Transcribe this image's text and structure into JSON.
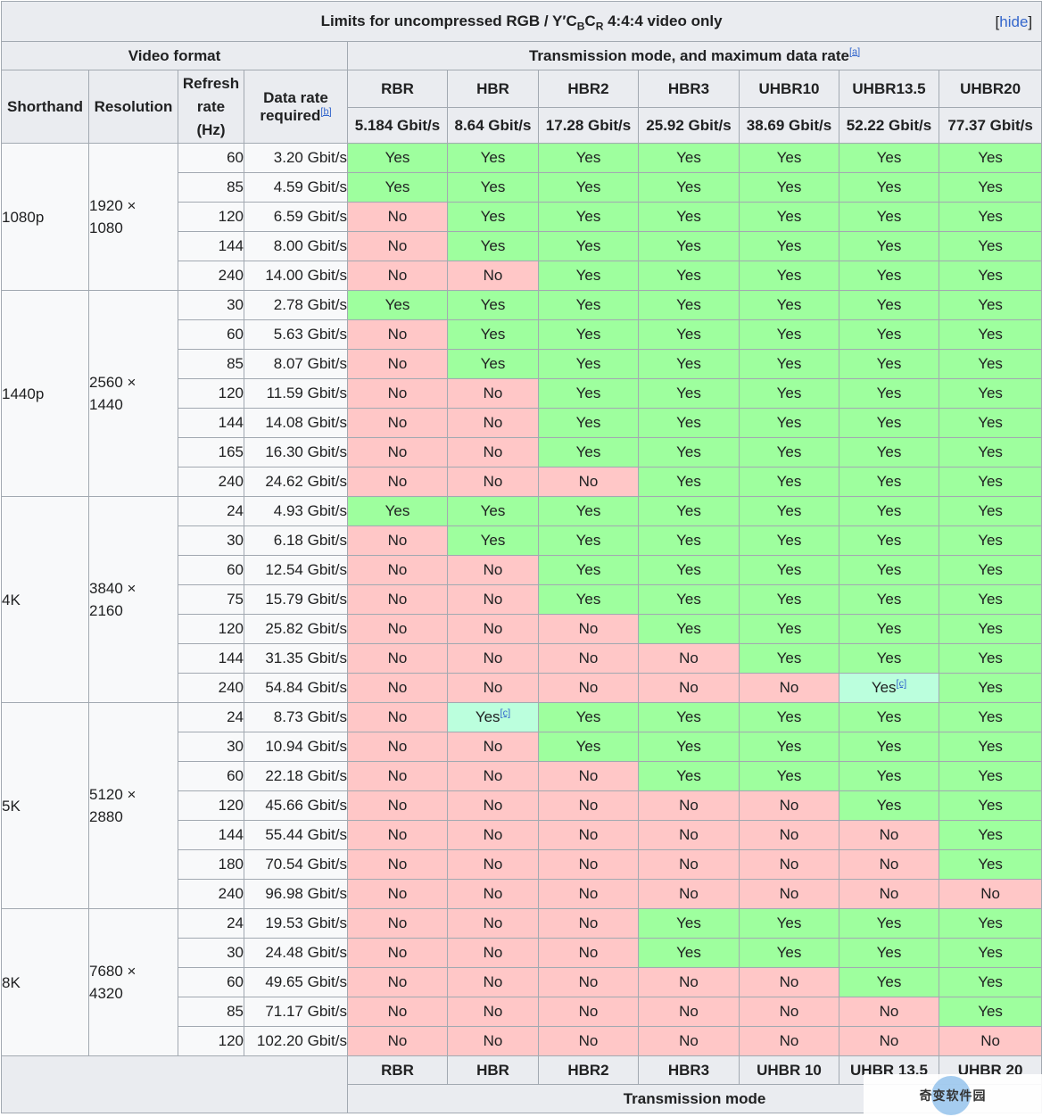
{
  "caption": {
    "prefix": "Limits for uncompressed RGB / Y′C",
    "sub1": "B",
    "mid": "C",
    "sub2": "R",
    "suffix": " 4:4:4 video only",
    "hide_bracket_open": "[",
    "hide_label": "hide",
    "hide_bracket_close": "]"
  },
  "header": {
    "video_format": "Video format",
    "transmission": "Transmission mode, and maximum data rate",
    "transmission_note": "[a]",
    "shorthand": "Shorthand",
    "resolution": "Resolution",
    "refresh_line1": "Refresh",
    "refresh_line2": "rate",
    "refresh_line3": "(Hz)",
    "datarate_line1": "Data rate",
    "datarate_line2": "required",
    "datarate_note": "[b]",
    "modes": [
      "RBR",
      "HBR",
      "HBR2",
      "HBR3",
      "UHBR10",
      "UHBR13.5",
      "UHBR20"
    ],
    "mode_rates": [
      "5.184 Gbit/s",
      "8.64 Gbit/s",
      "17.28 Gbit/s",
      "25.92 Gbit/s",
      "38.69 Gbit/s",
      "52.22 Gbit/s",
      "77.37 Gbit/s"
    ]
  },
  "groups": [
    {
      "shorthand": "1080p",
      "res_line1": "1920 ×",
      "res_line2": "1080",
      "rows": [
        {
          "hz": "60",
          "rate": "3.20 Gbit/s",
          "cells": [
            "Yes",
            "Yes",
            "Yes",
            "Yes",
            "Yes",
            "Yes",
            "Yes"
          ]
        },
        {
          "hz": "85",
          "rate": "4.59 Gbit/s",
          "cells": [
            "Yes",
            "Yes",
            "Yes",
            "Yes",
            "Yes",
            "Yes",
            "Yes"
          ]
        },
        {
          "hz": "120",
          "rate": "6.59 Gbit/s",
          "cells": [
            "No",
            "Yes",
            "Yes",
            "Yes",
            "Yes",
            "Yes",
            "Yes"
          ]
        },
        {
          "hz": "144",
          "rate": "8.00 Gbit/s",
          "cells": [
            "No",
            "Yes",
            "Yes",
            "Yes",
            "Yes",
            "Yes",
            "Yes"
          ]
        },
        {
          "hz": "240",
          "rate": "14.00 Gbit/s",
          "cells": [
            "No",
            "No",
            "Yes",
            "Yes",
            "Yes",
            "Yes",
            "Yes"
          ]
        }
      ]
    },
    {
      "shorthand": "1440p",
      "res_line1": "2560 ×",
      "res_line2": "1440",
      "rows": [
        {
          "hz": "30",
          "rate": "2.78 Gbit/s",
          "cells": [
            "Yes",
            "Yes",
            "Yes",
            "Yes",
            "Yes",
            "Yes",
            "Yes"
          ]
        },
        {
          "hz": "60",
          "rate": "5.63 Gbit/s",
          "cells": [
            "No",
            "Yes",
            "Yes",
            "Yes",
            "Yes",
            "Yes",
            "Yes"
          ]
        },
        {
          "hz": "85",
          "rate": "8.07 Gbit/s",
          "cells": [
            "No",
            "Yes",
            "Yes",
            "Yes",
            "Yes",
            "Yes",
            "Yes"
          ]
        },
        {
          "hz": "120",
          "rate": "11.59 Gbit/s",
          "cells": [
            "No",
            "No",
            "Yes",
            "Yes",
            "Yes",
            "Yes",
            "Yes"
          ]
        },
        {
          "hz": "144",
          "rate": "14.08 Gbit/s",
          "cells": [
            "No",
            "No",
            "Yes",
            "Yes",
            "Yes",
            "Yes",
            "Yes"
          ]
        },
        {
          "hz": "165",
          "rate": "16.30 Gbit/s",
          "cells": [
            "No",
            "No",
            "Yes",
            "Yes",
            "Yes",
            "Yes",
            "Yes"
          ]
        },
        {
          "hz": "240",
          "rate": "24.62 Gbit/s",
          "cells": [
            "No",
            "No",
            "No",
            "Yes",
            "Yes",
            "Yes",
            "Yes"
          ]
        }
      ]
    },
    {
      "shorthand": "4K",
      "res_line1": "3840 ×",
      "res_line2": "2160",
      "rows": [
        {
          "hz": "24",
          "rate": "4.93 Gbit/s",
          "cells": [
            "Yes",
            "Yes",
            "Yes",
            "Yes",
            "Yes",
            "Yes",
            "Yes"
          ]
        },
        {
          "hz": "30",
          "rate": "6.18 Gbit/s",
          "cells": [
            "No",
            "Yes",
            "Yes",
            "Yes",
            "Yes",
            "Yes",
            "Yes"
          ]
        },
        {
          "hz": "60",
          "rate": "12.54 Gbit/s",
          "cells": [
            "No",
            "No",
            "Yes",
            "Yes",
            "Yes",
            "Yes",
            "Yes"
          ]
        },
        {
          "hz": "75",
          "rate": "15.79 Gbit/s",
          "cells": [
            "No",
            "No",
            "Yes",
            "Yes",
            "Yes",
            "Yes",
            "Yes"
          ]
        },
        {
          "hz": "120",
          "rate": "25.82 Gbit/s",
          "cells": [
            "No",
            "No",
            "No",
            "Yes",
            "Yes",
            "Yes",
            "Yes"
          ]
        },
        {
          "hz": "144",
          "rate": "31.35 Gbit/s",
          "cells": [
            "No",
            "No",
            "No",
            "No",
            "Yes",
            "Yes",
            "Yes"
          ]
        },
        {
          "hz": "240",
          "rate": "54.84 Gbit/s",
          "cells": [
            "No",
            "No",
            "No",
            "No",
            "No",
            "Yes[c]",
            "Yes"
          ]
        }
      ]
    },
    {
      "shorthand": "5K",
      "res_line1": "5120 ×",
      "res_line2": "2880",
      "rows": [
        {
          "hz": "24",
          "rate": "8.73 Gbit/s",
          "cells": [
            "No",
            "Yes[c]",
            "Yes",
            "Yes",
            "Yes",
            "Yes",
            "Yes"
          ]
        },
        {
          "hz": "30",
          "rate": "10.94 Gbit/s",
          "cells": [
            "No",
            "No",
            "Yes",
            "Yes",
            "Yes",
            "Yes",
            "Yes"
          ]
        },
        {
          "hz": "60",
          "rate": "22.18 Gbit/s",
          "cells": [
            "No",
            "No",
            "No",
            "Yes",
            "Yes",
            "Yes",
            "Yes"
          ]
        },
        {
          "hz": "120",
          "rate": "45.66 Gbit/s",
          "cells": [
            "No",
            "No",
            "No",
            "No",
            "No",
            "Yes",
            "Yes"
          ]
        },
        {
          "hz": "144",
          "rate": "55.44 Gbit/s",
          "cells": [
            "No",
            "No",
            "No",
            "No",
            "No",
            "No",
            "Yes"
          ]
        },
        {
          "hz": "180",
          "rate": "70.54 Gbit/s",
          "cells": [
            "No",
            "No",
            "No",
            "No",
            "No",
            "No",
            "Yes"
          ]
        },
        {
          "hz": "240",
          "rate": "96.98 Gbit/s",
          "cells": [
            "No",
            "No",
            "No",
            "No",
            "No",
            "No",
            "No"
          ]
        }
      ]
    },
    {
      "shorthand": "8K",
      "res_line1": "7680 ×",
      "res_line2": "4320",
      "rows": [
        {
          "hz": "24",
          "rate": "19.53 Gbit/s",
          "cells": [
            "No",
            "No",
            "No",
            "Yes",
            "Yes",
            "Yes",
            "Yes"
          ]
        },
        {
          "hz": "30",
          "rate": "24.48 Gbit/s",
          "cells": [
            "No",
            "No",
            "No",
            "Yes",
            "Yes",
            "Yes",
            "Yes"
          ]
        },
        {
          "hz": "60",
          "rate": "49.65 Gbit/s",
          "cells": [
            "No",
            "No",
            "No",
            "No",
            "No",
            "Yes",
            "Yes"
          ]
        },
        {
          "hz": "85",
          "rate": "71.17 Gbit/s",
          "cells": [
            "No",
            "No",
            "No",
            "No",
            "No",
            "No",
            "Yes"
          ]
        },
        {
          "hz": "120",
          "rate": "102.20 Gbit/s",
          "cells": [
            "No",
            "No",
            "No",
            "No",
            "No",
            "No",
            "No"
          ]
        }
      ]
    }
  ],
  "footer": {
    "modes": [
      "RBR",
      "HBR",
      "HBR2",
      "HBR3",
      "UHBR 10",
      "UHBR 13.5",
      "UHBR 20"
    ],
    "label": "Transmission mode"
  },
  "colors": {
    "yes": "#9eff9e",
    "no": "#ffc7c7",
    "partial": "#bbffdd",
    "header": "#eaecf0",
    "link": "#3366cc"
  },
  "watermark": {
    "text": "奇变软件园"
  }
}
